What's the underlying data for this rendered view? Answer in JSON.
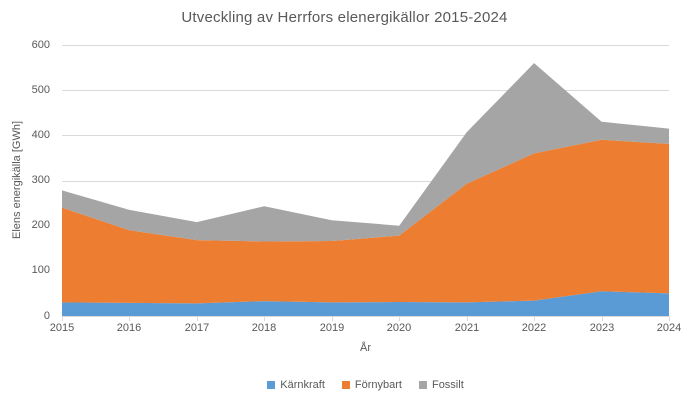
{
  "chart": {
    "title": "Utveckling av Herrfors elenergikällor 2015-2024",
    "x_axis_label": "År",
    "y_axis_label": "Elens energikälla [GWh]"
  },
  "chart_data": {
    "type": "area",
    "stacked": true,
    "title": "Utveckling av Herrfors elenergikällor 2015-2024",
    "xlabel": "År",
    "ylabel": "Elens energikälla [GWh]",
    "categories": [
      2015,
      2016,
      2017,
      2018,
      2019,
      2020,
      2021,
      2022,
      2023,
      2024
    ],
    "series": [
      {
        "name": "Kärnkraft",
        "color": "#5B9BD5",
        "values": [
          30,
          29,
          28,
          33,
          30,
          31,
          30,
          34,
          55,
          50
        ]
      },
      {
        "name": "Förnybart",
        "color": "#ED7D31",
        "values": [
          210,
          161,
          140,
          132,
          136,
          147,
          263,
          326,
          335,
          331
        ]
      },
      {
        "name": "Fossilt",
        "color": "#A5A5A5",
        "values": [
          38,
          45,
          40,
          78,
          46,
          22,
          114,
          200,
          40,
          34
        ]
      }
    ],
    "stacked_totals": [
      278,
      235,
      208,
      243,
      212,
      200,
      407,
      560,
      430,
      415
    ],
    "ylim": [
      0,
      600
    ],
    "ytick_interval": 100,
    "yticks": [
      0,
      100,
      200,
      300,
      400,
      500,
      600
    ],
    "grid": true,
    "legend_position": "bottom"
  },
  "colors": {
    "gridline": "#D9D9D9",
    "axis_line": "#D9D9D9",
    "text": "#595959",
    "background": "#FFFFFF"
  }
}
